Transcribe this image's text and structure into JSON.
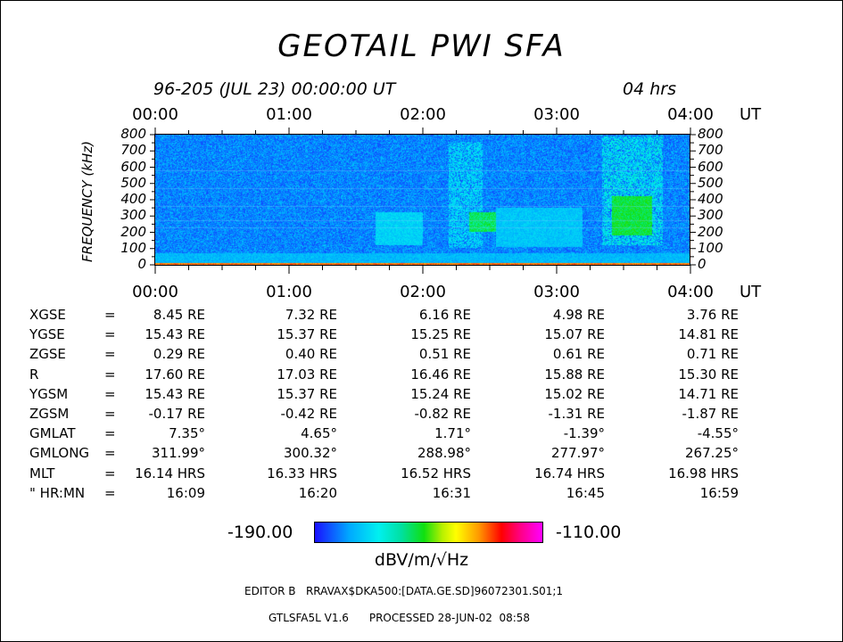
{
  "title": "GEOTAIL PWI SFA",
  "subtitle": {
    "date": "96-205 (JUL 23) 00:00:00 UT",
    "span": "04 hrs"
  },
  "colorbar": {
    "min": "-190.00",
    "max": "-110.00",
    "unit": "dBV/m/√Hz",
    "colors": [
      "#1a10ff",
      "#00a8ff",
      "#00f0f0",
      "#10e010",
      "#ffff00",
      "#ff9a00",
      "#ff0000",
      "#ff00ff"
    ]
  },
  "chart_data": {
    "type": "heatmap",
    "ylabel": "FREQUENCY (kHz)",
    "x_ticks": [
      "00:00",
      "01:00",
      "02:00",
      "03:00",
      "04:00"
    ],
    "x_unit": "UT",
    "y_ticks": [
      "800",
      "700",
      "600",
      "500",
      "400",
      "300",
      "200",
      "100",
      "0"
    ],
    "ylim": [
      0,
      800
    ],
    "xlim_hours": [
      0,
      4
    ],
    "features": [
      {
        "t_start_h": 1.65,
        "t_end_h": 2.0,
        "f_low_khz": 120,
        "f_high_khz": 320,
        "level_dbv": -172
      },
      {
        "t_start_h": 2.2,
        "t_end_h": 2.45,
        "f_low_khz": 100,
        "f_high_khz": 760,
        "level_dbv": -170
      },
      {
        "t_start_h": 2.35,
        "t_end_h": 2.55,
        "f_low_khz": 200,
        "f_high_khz": 320,
        "level_dbv": -160
      },
      {
        "t_start_h": 2.55,
        "t_end_h": 3.2,
        "f_low_khz": 110,
        "f_high_khz": 350,
        "level_dbv": -174
      },
      {
        "t_start_h": 3.35,
        "t_end_h": 3.8,
        "f_low_khz": 120,
        "f_high_khz": 790,
        "level_dbv": -168
      },
      {
        "t_start_h": 3.42,
        "t_end_h": 3.72,
        "f_low_khz": 180,
        "f_high_khz": 420,
        "level_dbv": -158
      },
      {
        "t_start_h": 0.0,
        "t_end_h": 4.0,
        "f_low_khz": 0,
        "f_high_khz": 70,
        "level_dbv": -176
      },
      {
        "t_start_h": 0.0,
        "t_end_h": 4.0,
        "f_low_khz": 0,
        "f_high_khz": 10,
        "level_dbv": -130
      }
    ]
  },
  "ephemeris": {
    "rows": [
      {
        "label": "XGSE",
        "values": [
          "8.45 RE",
          "7.32 RE",
          "6.16 RE",
          "4.98 RE",
          "3.76 RE"
        ]
      },
      {
        "label": "YGSE",
        "values": [
          "15.43 RE",
          "15.37 RE",
          "15.25 RE",
          "15.07 RE",
          "14.81 RE"
        ]
      },
      {
        "label": "ZGSE",
        "values": [
          "0.29 RE",
          "0.40 RE",
          "0.51 RE",
          "0.61 RE",
          "0.71 RE"
        ]
      },
      {
        "label": "R",
        "values": [
          "17.60 RE",
          "17.03 RE",
          "16.46 RE",
          "15.88 RE",
          "15.30 RE"
        ]
      },
      {
        "label": "YGSM",
        "values": [
          "15.43 RE",
          "15.37 RE",
          "15.24 RE",
          "15.02 RE",
          "14.71 RE"
        ]
      },
      {
        "label": "ZGSM",
        "values": [
          "-0.17 RE",
          "-0.42 RE",
          "-0.82 RE",
          "-1.31 RE",
          "-1.87 RE"
        ]
      },
      {
        "label": "GMLAT",
        "values": [
          "7.35°",
          "4.65°",
          "1.71°",
          "-1.39°",
          "-4.55°"
        ]
      },
      {
        "label": "GMLONG",
        "values": [
          "311.99°",
          "300.32°",
          "288.98°",
          "277.97°",
          "267.25°"
        ]
      },
      {
        "label": "MLT",
        "values": [
          "16.14 HRS",
          "16.33 HRS",
          "16.52 HRS",
          "16.74 HRS",
          "16.98 HRS"
        ]
      },
      {
        "label": "\" HR:MN",
        "values": [
          "16:09",
          "16:20",
          "16:31",
          "16:45",
          "16:59"
        ]
      }
    ]
  },
  "footer": {
    "line1": "EDITOR B   RRAVAX$DKA500:[DATA.GE.SD]96072301.S01;1",
    "line2": "GTLSFA5L V1.6      PROCESSED 28-JUN-02  08:58"
  }
}
